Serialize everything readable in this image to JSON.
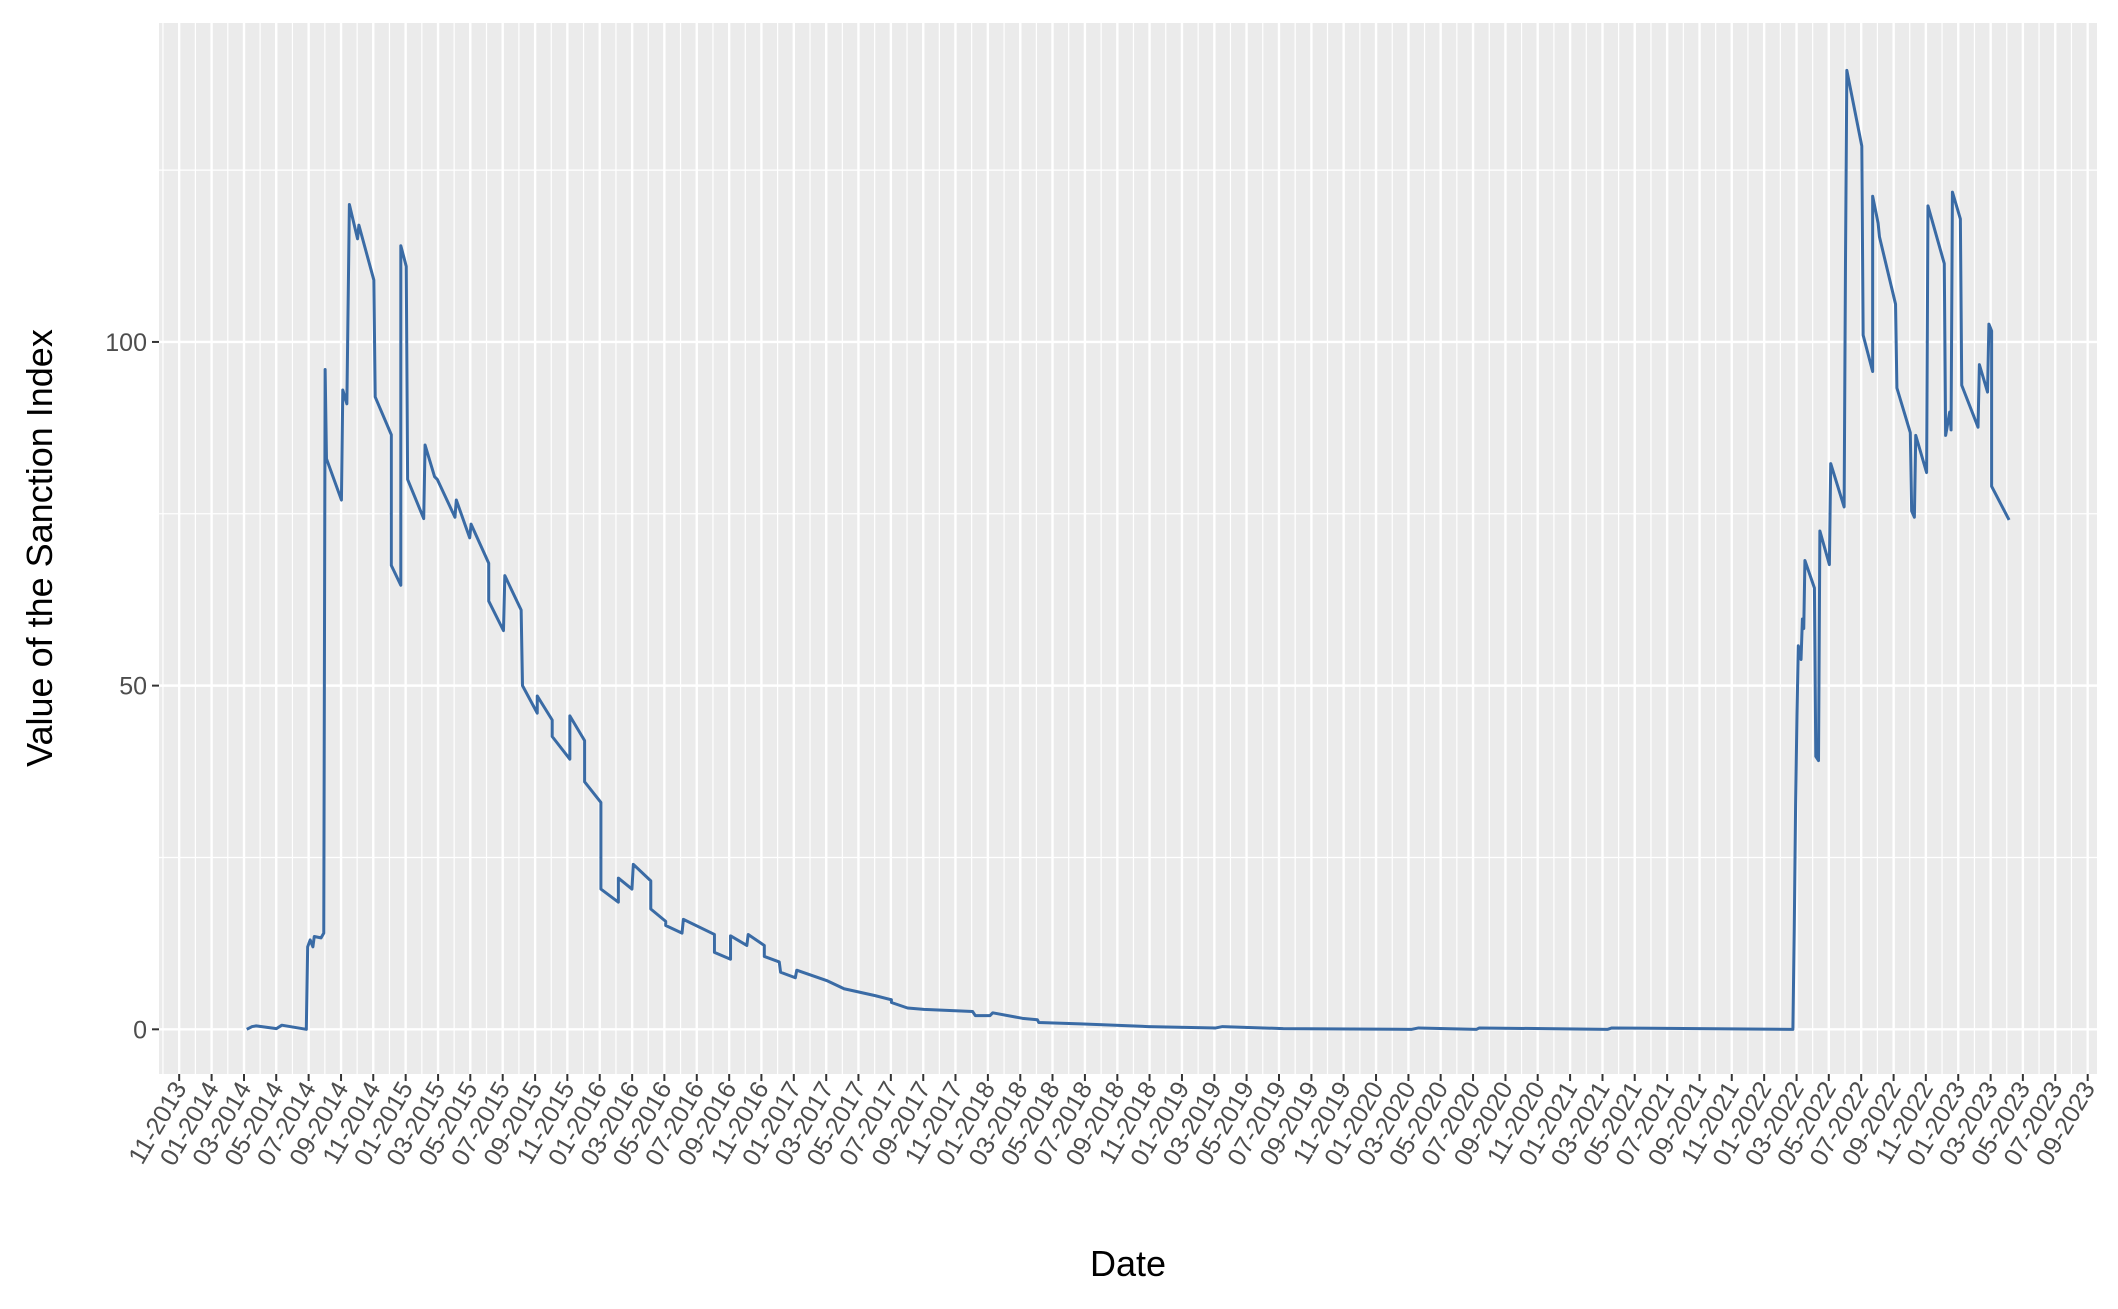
{
  "chart_data": {
    "type": "line",
    "x_label": "Date",
    "y_label": "Value of the Sanction Index",
    "color": "#3a6ba5",
    "grid": true,
    "xlim": [
      2013.729,
      2023.715
    ],
    "ylim": [
      -6.5,
      146.4
    ],
    "yticks": [
      0,
      50,
      100
    ],
    "xticks": [
      {
        "value": 2013.833,
        "label": "11-2013"
      },
      {
        "value": 2014.0,
        "label": "01-2014"
      },
      {
        "value": 2014.167,
        "label": "03-2014"
      },
      {
        "value": 2014.333,
        "label": "05-2014"
      },
      {
        "value": 2014.5,
        "label": "07-2014"
      },
      {
        "value": 2014.667,
        "label": "09-2014"
      },
      {
        "value": 2014.833,
        "label": "11-2014"
      },
      {
        "value": 2015.0,
        "label": "01-2015"
      },
      {
        "value": 2015.167,
        "label": "03-2015"
      },
      {
        "value": 2015.333,
        "label": "05-2015"
      },
      {
        "value": 2015.5,
        "label": "07-2015"
      },
      {
        "value": 2015.667,
        "label": "09-2015"
      },
      {
        "value": 2015.833,
        "label": "11-2015"
      },
      {
        "value": 2016.0,
        "label": "01-2016"
      },
      {
        "value": 2016.167,
        "label": "03-2016"
      },
      {
        "value": 2016.333,
        "label": "05-2016"
      },
      {
        "value": 2016.5,
        "label": "07-2016"
      },
      {
        "value": 2016.667,
        "label": "09-2016"
      },
      {
        "value": 2016.833,
        "label": "11-2016"
      },
      {
        "value": 2017.0,
        "label": "01-2017"
      },
      {
        "value": 2017.167,
        "label": "03-2017"
      },
      {
        "value": 2017.333,
        "label": "05-2017"
      },
      {
        "value": 2017.5,
        "label": "07-2017"
      },
      {
        "value": 2017.667,
        "label": "09-2017"
      },
      {
        "value": 2017.833,
        "label": "11-2017"
      },
      {
        "value": 2018.0,
        "label": "01-2018"
      },
      {
        "value": 2018.167,
        "label": "03-2018"
      },
      {
        "value": 2018.333,
        "label": "05-2018"
      },
      {
        "value": 2018.5,
        "label": "07-2018"
      },
      {
        "value": 2018.667,
        "label": "09-2018"
      },
      {
        "value": 2018.833,
        "label": "11-2018"
      },
      {
        "value": 2019.0,
        "label": "01-2019"
      },
      {
        "value": 2019.167,
        "label": "03-2019"
      },
      {
        "value": 2019.333,
        "label": "05-2019"
      },
      {
        "value": 2019.5,
        "label": "07-2019"
      },
      {
        "value": 2019.667,
        "label": "09-2019"
      },
      {
        "value": 2019.833,
        "label": "11-2019"
      },
      {
        "value": 2020.0,
        "label": "01-2020"
      },
      {
        "value": 2020.167,
        "label": "03-2020"
      },
      {
        "value": 2020.333,
        "label": "05-2020"
      },
      {
        "value": 2020.5,
        "label": "07-2020"
      },
      {
        "value": 2020.667,
        "label": "09-2020"
      },
      {
        "value": 2020.833,
        "label": "11-2020"
      },
      {
        "value": 2021.0,
        "label": "01-2021"
      },
      {
        "value": 2021.167,
        "label": "03-2021"
      },
      {
        "value": 2021.333,
        "label": "05-2021"
      },
      {
        "value": 2021.5,
        "label": "07-2021"
      },
      {
        "value": 2021.667,
        "label": "09-2021"
      },
      {
        "value": 2021.833,
        "label": "11-2021"
      },
      {
        "value": 2022.0,
        "label": "01-2022"
      },
      {
        "value": 2022.167,
        "label": "03-2022"
      },
      {
        "value": 2022.333,
        "label": "05-2022"
      },
      {
        "value": 2022.5,
        "label": "07-2022"
      },
      {
        "value": 2022.667,
        "label": "09-2022"
      },
      {
        "value": 2022.833,
        "label": "11-2022"
      },
      {
        "value": 2023.0,
        "label": "01-2023"
      },
      {
        "value": 2023.167,
        "label": "03-2023"
      },
      {
        "value": 2023.333,
        "label": "05-2023"
      },
      {
        "value": 2023.5,
        "label": "07-2023"
      },
      {
        "value": 2023.667,
        "label": "09-2023"
      }
    ],
    "x": [
      2014.181,
      2014.209,
      2014.23,
      2014.334,
      2014.362,
      2014.488,
      2014.495,
      2014.508,
      2014.522,
      2014.529,
      2014.564,
      2014.578,
      2014.585,
      2014.592,
      2014.669,
      2014.676,
      2014.697,
      2014.71,
      2014.752,
      2014.759,
      2014.836,
      2014.843,
      2014.926,
      2014.926,
      2014.975,
      2014.975,
      2015.003,
      2015.01,
      2015.093,
      2015.1,
      2015.149,
      2015.163,
      2015.254,
      2015.261,
      2015.33,
      2015.337,
      2015.428,
      2015.428,
      2015.504,
      2015.511,
      2015.595,
      2015.602,
      2015.678,
      2015.678,
      2015.755,
      2015.755,
      2015.846,
      2015.846,
      2015.922,
      2015.922,
      2016.006,
      2016.006,
      2016.096,
      2016.096,
      2016.166,
      2016.173,
      2016.263,
      2016.263,
      2016.34,
      2016.34,
      2016.424,
      2016.431,
      2016.591,
      2016.591,
      2016.674,
      2016.674,
      2016.758,
      2016.765,
      2016.848,
      2016.848,
      2016.925,
      2016.932,
      2017.008,
      2017.015,
      2017.169,
      2017.259,
      2017.419,
      2017.503,
      2017.503,
      2017.586,
      2017.67,
      2017.921,
      2017.935,
      2018.011,
      2018.025,
      2018.178,
      2018.255,
      2018.262,
      2018.478,
      2018.826,
      2019.174,
      2019.209,
      2019.522,
      2020.184,
      2020.219,
      2020.518,
      2020.532,
      2021.194,
      2021.215,
      2022.141,
      2022.148,
      2022.155,
      2022.162,
      2022.169,
      2022.176,
      2022.19,
      2022.197,
      2022.204,
      2022.21,
      2022.259,
      2022.266,
      2022.28,
      2022.287,
      2022.336,
      2022.343,
      2022.412,
      2022.419,
      2022.426,
      2022.503,
      2022.51,
      2022.559,
      2022.559,
      2022.587,
      2022.594,
      2022.677,
      2022.684,
      2022.753,
      2022.76,
      2022.774,
      2022.781,
      2022.837,
      2022.844,
      2022.928,
      2022.935,
      2022.956,
      2022.963,
      2022.97,
      2023.011,
      2023.018,
      2023.102,
      2023.109,
      2023.151,
      2023.158,
      2023.172,
      2023.172,
      2023.262
    ],
    "values": [
      0,
      0.4,
      0.5,
      0.1,
      0.6,
      0,
      12,
      13,
      12,
      13.5,
      13.3,
      14,
      96,
      83,
      77,
      93,
      91,
      120,
      115,
      117,
      109,
      92,
      86.5,
      67.5,
      64.6,
      114,
      111,
      80,
      74.3,
      85,
      80.4,
      80,
      74.5,
      77,
      71.5,
      73.5,
      67.8,
      62.3,
      58,
      66,
      61,
      50,
      46,
      48.5,
      45,
      42.6,
      39.3,
      45.6,
      42,
      36,
      33,
      20.4,
      18.5,
      22,
      20.4,
      24,
      21.6,
      17.5,
      15.7,
      15.1,
      14,
      16,
      13.8,
      11.2,
      10.2,
      13.6,
      12.2,
      13.8,
      12.2,
      10.6,
      9.8,
      8.3,
      7.5,
      8.6,
      7.1,
      5.9,
      4.9,
      4.3,
      3.9,
      3.1,
      2.9,
      2.6,
      2.0,
      2.0,
      2.4,
      1.6,
      1.4,
      1.0,
      0.8,
      0.4,
      0.2,
      0.4,
      0.1,
      0,
      0.2,
      0,
      0.2,
      0,
      0.2,
      0,
      0,
      14.5,
      32.8,
      45.6,
      55.8,
      53.8,
      59.7,
      58.3,
      68.2,
      64.2,
      39.7,
      39.1,
      72.5,
      67.6,
      82.3,
      76,
      111.4,
      139.5,
      128.5,
      101,
      95.7,
      121.2,
      117.3,
      115.3,
      105.5,
      93.3,
      86.8,
      75.4,
      74.5,
      86.4,
      81,
      119.8,
      111.4,
      86.4,
      89.8,
      87.2,
      121.8,
      117.9,
      93.7,
      87.6,
      96.7,
      92.7,
      102.6,
      101.6,
      79,
      74.1
    ]
  }
}
